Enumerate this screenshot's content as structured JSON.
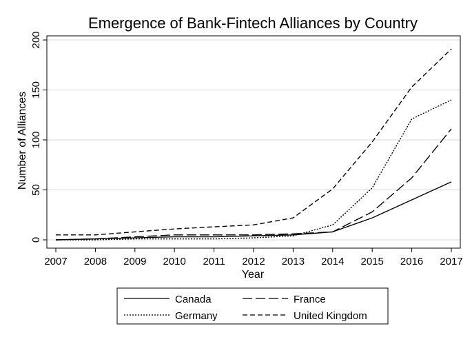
{
  "chart_data": {
    "type": "line",
    "title": "Emergence of Bank-Fintech Alliances by Country",
    "xlabel": "Year",
    "ylabel": "Number of Alliances",
    "x": [
      2007,
      2008,
      2009,
      2010,
      2011,
      2012,
      2013,
      2014,
      2015,
      2016,
      2017
    ],
    "xlim": [
      2007,
      2017
    ],
    "ylim": [
      0,
      200
    ],
    "yticks": [
      0,
      50,
      100,
      150,
      200
    ],
    "xticks": [
      2007,
      2008,
      2009,
      2010,
      2011,
      2012,
      2013,
      2014,
      2015,
      2016,
      2017
    ],
    "grid": true,
    "legend_position": "bottom",
    "series": [
      {
        "name": "Canada",
        "style": "solid",
        "values": [
          0,
          1,
          2,
          3,
          3,
          4,
          5,
          8,
          22,
          40,
          58
        ]
      },
      {
        "name": "France",
        "style": "longdash",
        "values": [
          0,
          1,
          3,
          5,
          5,
          5,
          6,
          8,
          28,
          62,
          111
        ]
      },
      {
        "name": "Germany",
        "style": "dotted",
        "values": [
          0,
          0,
          1,
          1,
          1,
          2,
          4,
          15,
          52,
          121,
          140
        ]
      },
      {
        "name": "United Kingdom",
        "style": "dashed",
        "values": [
          5,
          5,
          8,
          11,
          13,
          15,
          22,
          51,
          98,
          153,
          191
        ]
      }
    ],
    "colors": {
      "line": "#000000",
      "grid": "#d9d9d9",
      "background": "#ffffff"
    }
  }
}
